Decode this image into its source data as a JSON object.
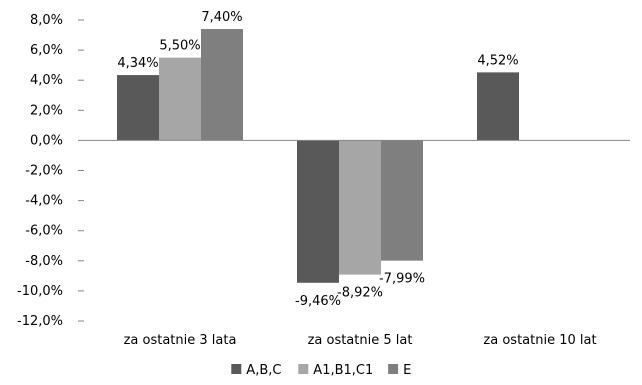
{
  "chart_data": {
    "type": "bar",
    "categories": [
      "za ostatnie 3 lata",
      "za ostatnie 5 lat",
      "za ostatnie 10 lat"
    ],
    "series": [
      {
        "name": "A,B,C",
        "color": "#595959",
        "values": [
          4.34,
          -9.46,
          4.52
        ],
        "labels": [
          "4,34%",
          "-9,46%",
          "4,52%"
        ]
      },
      {
        "name": "A1,B1,C1",
        "color": "#a6a6a6",
        "values": [
          5.5,
          -8.92,
          null
        ],
        "labels": [
          "5,50%",
          "-8,92%",
          ""
        ]
      },
      {
        "name": "E",
        "color": "#7f7f7f",
        "values": [
          7.4,
          -7.99,
          null
        ],
        "labels": [
          "7,40%",
          "-7,99%",
          ""
        ]
      }
    ],
    "ylim": [
      -12,
      8
    ],
    "yticks": [
      8,
      6,
      4,
      2,
      0,
      -2,
      -4,
      -6,
      -8,
      -10,
      -12
    ],
    "ytick_labels": [
      "8,0%",
      "6,0%",
      "4,0%",
      "2,0%",
      "0,0%",
      "-2,0%",
      "-4,0%",
      "-6,0%",
      "-8,0%",
      "-10,0%",
      "-12,0%"
    ],
    "title": "",
    "xlabel": "",
    "ylabel": "",
    "grid": false,
    "legend_position": "bottom"
  }
}
